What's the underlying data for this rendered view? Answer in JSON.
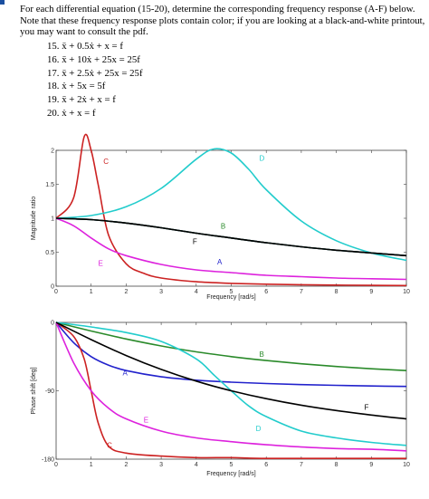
{
  "intro_text": "For each differential equation (15-20), determine the corresponding frequency response (A-F) below. Note that these frequency response plots contain color; if you are looking at a black-and-white printout, you may want to consult the pdf.",
  "equations": [
    "15. ẍ + 0.5ẋ + x = f",
    "16. ẍ + 10ẋ + 25x = 25f",
    "17. ẍ + 2.5ẋ + 25x = 25f",
    "18. ẋ + 5x = 5f",
    "19. ẍ + 2ẋ + x = f",
    "20. ẋ + x = f"
  ],
  "chart_data": [
    {
      "type": "line",
      "xlabel": "Frequency [rad/s]",
      "ylabel": "Magnitude ratio",
      "xlim": [
        0,
        10
      ],
      "ylim": [
        0,
        2
      ],
      "xticks": [
        "0",
        "1",
        "2",
        "3",
        "4",
        "5",
        "6",
        "7",
        "8",
        "9",
        "10"
      ],
      "yticks": [
        "0",
        "0.5",
        "1",
        "1.5",
        "2"
      ],
      "grid": false,
      "series": [
        {
          "name": "A",
          "color": "#2222cc",
          "x": [
            0,
            1,
            2,
            3,
            4,
            5,
            6,
            7,
            8,
            9,
            10
          ],
          "y": [
            1.0,
            0.98,
            0.93,
            0.86,
            0.78,
            0.71,
            0.64,
            0.58,
            0.53,
            0.49,
            0.45
          ]
        },
        {
          "name": "B",
          "color": "#2a8a2a",
          "x": [
            0,
            1,
            2,
            3,
            4,
            5,
            6,
            7,
            8,
            9,
            10
          ],
          "y": [
            1.0,
            0.98,
            0.93,
            0.86,
            0.78,
            0.71,
            0.64,
            0.58,
            0.53,
            0.49,
            0.45
          ]
        },
        {
          "name": "C",
          "color": "#cc2222",
          "x": [
            0,
            0.5,
            0.8,
            1,
            1.2,
            1.5,
            2,
            2.5,
            3,
            4,
            5,
            6,
            7,
            8,
            9,
            10
          ],
          "y": [
            1.0,
            1.3,
            2.2,
            2.0,
            1.5,
            0.75,
            0.33,
            0.19,
            0.12,
            0.066,
            0.042,
            0.029,
            0.021,
            0.016,
            0.012,
            0.01
          ]
        },
        {
          "name": "D",
          "color": "#22cccc",
          "x": [
            0,
            1,
            2,
            3,
            4,
            4.5,
            5,
            5.5,
            6,
            7,
            8,
            9,
            10
          ],
          "y": [
            1.0,
            1.04,
            1.17,
            1.44,
            1.87,
            2.02,
            1.96,
            1.72,
            1.42,
            0.96,
            0.67,
            0.49,
            0.38
          ]
        },
        {
          "name": "E",
          "color": "#dd22dd",
          "x": [
            0,
            0.5,
            1,
            1.5,
            2,
            3,
            4,
            5,
            6,
            7,
            8,
            9,
            10
          ],
          "y": [
            1.0,
            0.89,
            0.71,
            0.55,
            0.45,
            0.32,
            0.24,
            0.2,
            0.16,
            0.14,
            0.12,
            0.11,
            0.1
          ]
        },
        {
          "name": "F",
          "color": "#000000",
          "x": [
            0,
            1,
            2,
            3,
            4,
            5,
            6,
            7,
            8,
            9,
            10
          ],
          "y": [
            1.0,
            0.98,
            0.93,
            0.86,
            0.78,
            0.71,
            0.64,
            0.58,
            0.53,
            0.49,
            0.45
          ]
        }
      ]
    },
    {
      "type": "line",
      "xlabel": "Frequency [rad/s]",
      "ylabel": "Phase shift [deg]",
      "xlim": [
        0,
        10
      ],
      "ylim": [
        -180,
        0
      ],
      "xticks": [
        "0",
        "1",
        "2",
        "3",
        "4",
        "5",
        "6",
        "7",
        "8",
        "9",
        "10"
      ],
      "yticks": [
        "0",
        "-90",
        "-180"
      ],
      "grid": false,
      "series": [
        {
          "name": "A",
          "color": "#2222cc",
          "x": [
            0,
            0.5,
            1,
            1.5,
            2,
            3,
            4,
            5,
            6,
            7,
            8,
            9,
            10
          ],
          "y": [
            0,
            -26.6,
            -45,
            -56.3,
            -63.4,
            -71.6,
            -76,
            -78.7,
            -80.5,
            -81.9,
            -82.9,
            -83.7,
            -84.3
          ]
        },
        {
          "name": "B",
          "color": "#2a8a2a",
          "x": [
            0,
            1,
            2,
            3,
            4,
            5,
            6,
            7,
            8,
            9,
            10
          ],
          "y": [
            0,
            -11.3,
            -21.8,
            -31,
            -38.7,
            -45,
            -50.2,
            -54.5,
            -58,
            -61,
            -63.4
          ]
        },
        {
          "name": "C",
          "color": "#cc2222",
          "x": [
            0,
            0.5,
            0.8,
            1,
            1.2,
            1.5,
            2,
            3,
            4,
            5,
            6,
            8,
            10
          ],
          "y": [
            0,
            -18.4,
            -48,
            -90,
            -132,
            -163,
            -172,
            -176,
            -178,
            -178,
            -179,
            -179,
            -179
          ]
        },
        {
          "name": "D",
          "color": "#22cccc",
          "x": [
            0,
            1,
            2,
            3,
            4,
            4.5,
            5,
            5.5,
            6,
            7,
            8,
            9,
            10
          ],
          "y": [
            0,
            -6,
            -13.4,
            -25,
            -48,
            -69,
            -90,
            -110,
            -124,
            -143,
            -152,
            -158,
            -162
          ]
        },
        {
          "name": "E",
          "color": "#dd22dd",
          "x": [
            0,
            0.5,
            1,
            1.5,
            2,
            3,
            4,
            5,
            6,
            7,
            8,
            9,
            10
          ],
          "y": [
            0,
            -53,
            -90,
            -113,
            -127,
            -143,
            -152,
            -157,
            -161,
            -164,
            -166,
            -167,
            -169
          ]
        },
        {
          "name": "F",
          "color": "#000000",
          "x": [
            0,
            1,
            2,
            3,
            4,
            5,
            6,
            7,
            8,
            9,
            10
          ],
          "y": [
            0,
            -22.6,
            -43.6,
            -61.9,
            -77.3,
            -90,
            -100.4,
            -109,
            -116,
            -122,
            -127
          ]
        }
      ]
    }
  ]
}
